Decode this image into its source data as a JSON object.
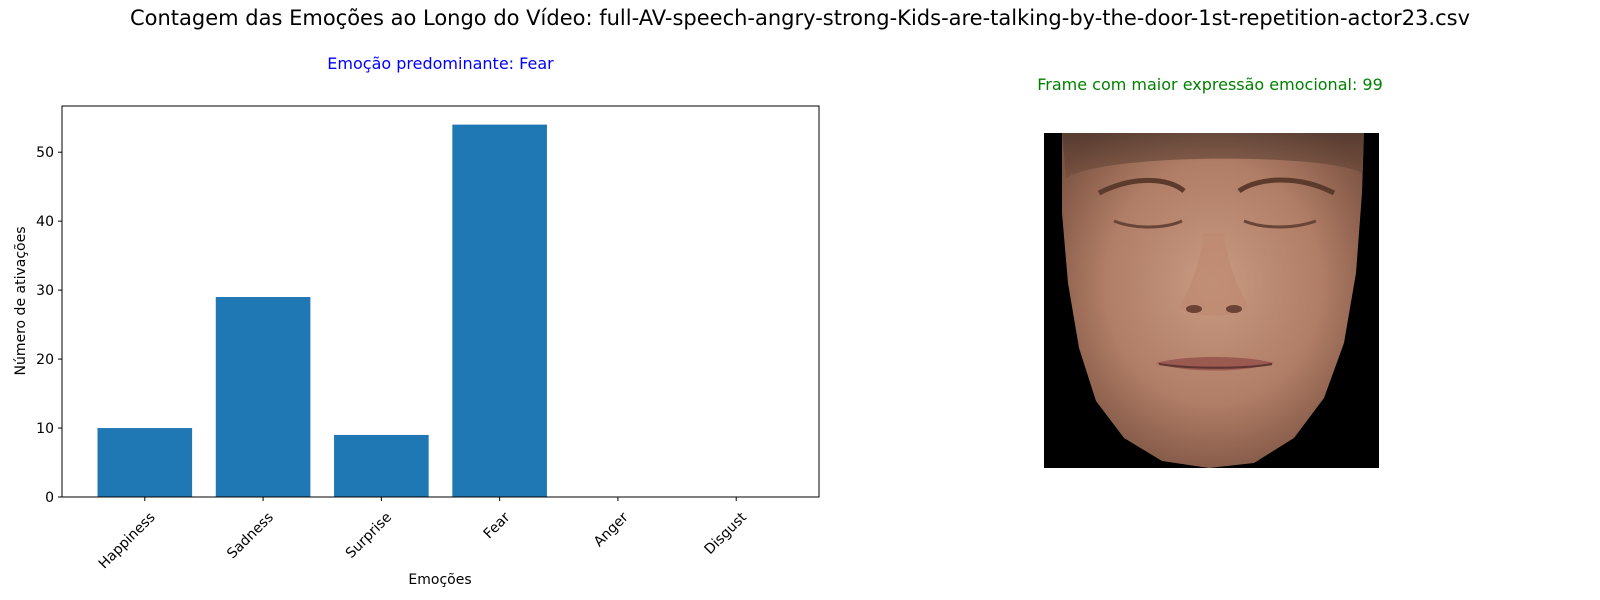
{
  "figure": {
    "suptitle": "Contagem das Emoções ao Longo do Vídeo: full-AV-speech-angry-strong-Kids-are-talking-by-the-door-1st-repetition-actor23.csv"
  },
  "chart_data": {
    "type": "bar",
    "title": "Emoção predominante: Fear",
    "title_color": "#0000ff",
    "categories": [
      "Happiness",
      "Sadness",
      "Surprise",
      "Fear",
      "Anger",
      "Disgust"
    ],
    "values": [
      10,
      29,
      9,
      54,
      0,
      0
    ],
    "bar_color": "#1f77b4",
    "xlabel": "Emoções",
    "ylabel": "Número de ativações",
    "ylim": [
      0,
      56.7
    ],
    "yticks": [
      0,
      10,
      20,
      30,
      40,
      50
    ],
    "grid": false,
    "legend": "none"
  },
  "face_panel": {
    "title": "Frame com maior expressão emocional: 99",
    "title_color": "#008000",
    "image": "close-up face crop of a young man with closed eyes on a black background"
  }
}
